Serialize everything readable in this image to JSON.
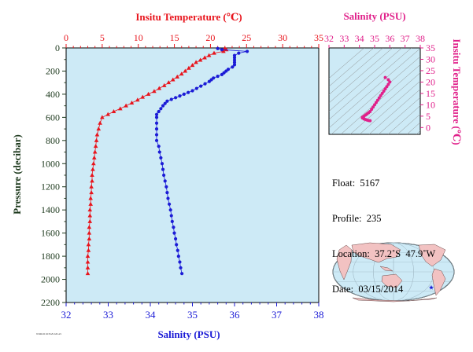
{
  "chart_data": [
    {
      "type": "scatter",
      "title": "",
      "top_axis_label": "Insitu Temperature (℃)",
      "bottom_axis_label": "Salinity (PSU)",
      "ylabel": "Pressure (decibar)",
      "temperature_xlim": [
        0,
        35
      ],
      "salinity_xlim": [
        32,
        38
      ],
      "ylim": [
        0,
        2200
      ],
      "y_inverted": true,
      "temperature_ticks": [
        "0",
        "5",
        "10",
        "15",
        "20",
        "25",
        "30",
        "35"
      ],
      "salinity_ticks": [
        "32",
        "33",
        "34",
        "35",
        "36",
        "37",
        "38"
      ],
      "pressure_ticks": [
        "0",
        "200",
        "400",
        "600",
        "800",
        "1000",
        "1200",
        "1400",
        "1600",
        "1800",
        "2000",
        "2200"
      ],
      "grid": false,
      "background": "#cdeaf6",
      "series": [
        {
          "marker": "triangle",
          "color": "#e8141c",
          "x_axis": "temperature",
          "points": [
            [
              22.0,
              5
            ],
            [
              22.2,
              15
            ],
            [
              21.8,
              30
            ],
            [
              20.5,
              45
            ],
            [
              19.8,
              65
            ],
            [
              19.2,
              85
            ],
            [
              18.6,
              105
            ],
            [
              18.0,
              125
            ],
            [
              17.5,
              150
            ],
            [
              17.0,
              175
            ],
            [
              16.5,
              200
            ],
            [
              16.0,
              225
            ],
            [
              15.4,
              250
            ],
            [
              14.8,
              275
            ],
            [
              14.2,
              300
            ],
            [
              13.6,
              325
            ],
            [
              12.9,
              350
            ],
            [
              12.2,
              375
            ],
            [
              11.4,
              400
            ],
            [
              10.6,
              425
            ],
            [
              9.9,
              450
            ],
            [
              9.1,
              475
            ],
            [
              8.3,
              500
            ],
            [
              7.5,
              525
            ],
            [
              6.6,
              550
            ],
            [
              5.8,
              575
            ],
            [
              5.0,
              600
            ],
            [
              4.7,
              650
            ],
            [
              4.5,
              700
            ],
            [
              4.3,
              750
            ],
            [
              4.2,
              800
            ],
            [
              4.1,
              850
            ],
            [
              4.0,
              900
            ],
            [
              3.9,
              950
            ],
            [
              3.8,
              1000
            ],
            [
              3.7,
              1050
            ],
            [
              3.6,
              1100
            ],
            [
              3.6,
              1150
            ],
            [
              3.5,
              1200
            ],
            [
              3.5,
              1250
            ],
            [
              3.4,
              1300
            ],
            [
              3.4,
              1350
            ],
            [
              3.3,
              1400
            ],
            [
              3.3,
              1450
            ],
            [
              3.3,
              1500
            ],
            [
              3.2,
              1550
            ],
            [
              3.2,
              1600
            ],
            [
              3.2,
              1650
            ],
            [
              3.1,
              1700
            ],
            [
              3.1,
              1750
            ],
            [
              3.0,
              1800
            ],
            [
              3.0,
              1850
            ],
            [
              3.0,
              1900
            ],
            [
              3.0,
              1950
            ]
          ]
        },
        {
          "marker": "circle",
          "color": "#1b1bd6",
          "x_axis": "salinity",
          "points": [
            [
              35.6,
              5
            ],
            [
              35.7,
              15
            ],
            [
              36.3,
              30
            ],
            [
              36.1,
              45
            ],
            [
              36.0,
              65
            ],
            [
              36.0,
              85
            ],
            [
              36.0,
              105
            ],
            [
              36.0,
              125
            ],
            [
              36.0,
              145
            ],
            [
              35.95,
              165
            ],
            [
              35.85,
              185
            ],
            [
              35.8,
              200
            ],
            [
              35.75,
              215
            ],
            [
              35.7,
              230
            ],
            [
              35.6,
              245
            ],
            [
              35.5,
              260
            ],
            [
              35.45,
              275
            ],
            [
              35.4,
              290
            ],
            [
              35.3,
              310
            ],
            [
              35.2,
              330
            ],
            [
              35.1,
              350
            ],
            [
              35.0,
              370
            ],
            [
              34.9,
              385
            ],
            [
              34.8,
              400
            ],
            [
              34.7,
              415
            ],
            [
              34.6,
              430
            ],
            [
              34.5,
              445
            ],
            [
              34.4,
              460
            ],
            [
              34.35,
              480
            ],
            [
              34.3,
              500
            ],
            [
              34.25,
              525
            ],
            [
              34.2,
              550
            ],
            [
              34.15,
              575
            ],
            [
              34.15,
              600
            ],
            [
              34.15,
              650
            ],
            [
              34.15,
              700
            ],
            [
              34.15,
              750
            ],
            [
              34.15,
              800
            ],
            [
              34.2,
              850
            ],
            [
              34.22,
              900
            ],
            [
              34.25,
              950
            ],
            [
              34.28,
              1000
            ],
            [
              34.3,
              1050
            ],
            [
              34.32,
              1100
            ],
            [
              34.35,
              1150
            ],
            [
              34.38,
              1200
            ],
            [
              34.4,
              1250
            ],
            [
              34.42,
              1300
            ],
            [
              34.45,
              1350
            ],
            [
              34.48,
              1400
            ],
            [
              34.5,
              1450
            ],
            [
              34.52,
              1500
            ],
            [
              34.55,
              1550
            ],
            [
              34.57,
              1600
            ],
            [
              34.6,
              1650
            ],
            [
              34.62,
              1700
            ],
            [
              34.65,
              1750
            ],
            [
              34.67,
              1800
            ],
            [
              34.7,
              1850
            ],
            [
              34.72,
              1900
            ],
            [
              34.75,
              1950
            ]
          ]
        }
      ]
    },
    {
      "type": "scatter",
      "title": "",
      "xlabel": "Salinity (PSU)",
      "ylabel": "Insitu Temperature (℃)",
      "xlim": [
        32,
        38
      ],
      "ylim": [
        -3,
        35
      ],
      "x_ticks": [
        "32",
        "33",
        "34",
        "35",
        "36",
        "37",
        "38"
      ],
      "y_ticks": [
        "0",
        "5",
        "10",
        "15",
        "20",
        "25",
        "30",
        "35"
      ],
      "color": "#e0208a",
      "points": [
        [
          35.7,
          22.0
        ],
        [
          35.9,
          21.0
        ],
        [
          36.0,
          20.0
        ],
        [
          35.9,
          19.0
        ],
        [
          35.8,
          18.0
        ],
        [
          35.7,
          17.0
        ],
        [
          35.6,
          16.0
        ],
        [
          35.5,
          15.0
        ],
        [
          35.4,
          14.0
        ],
        [
          35.3,
          13.0
        ],
        [
          35.2,
          12.0
        ],
        [
          35.1,
          11.0
        ],
        [
          35.0,
          10.0
        ],
        [
          34.9,
          9.0
        ],
        [
          34.8,
          8.0
        ],
        [
          34.7,
          7.0
        ],
        [
          34.6,
          6.5
        ],
        [
          34.5,
          6.0
        ],
        [
          34.4,
          5.5
        ],
        [
          34.3,
          5.0
        ],
        [
          34.2,
          4.5
        ],
        [
          34.2,
          4.2
        ],
        [
          34.3,
          3.8
        ],
        [
          34.4,
          3.5
        ],
        [
          34.5,
          3.3
        ],
        [
          34.6,
          3.1
        ],
        [
          34.7,
          3.0
        ]
      ]
    }
  ],
  "info": {
    "float": "Float:  5167",
    "profile": "Profile:  235",
    "location": "Location:  37.2˚S  47.9˚W",
    "date": "Date:  03/15/2014"
  },
  "colors": {
    "temperature": "#e8141c",
    "salinity": "#1b1bd6",
    "ts_diagram": "#e0208a",
    "axis_text": "#1e3a1e",
    "land": "#f2c2c2",
    "ocean": "#cdeaf6"
  },
  "map": {
    "marker_icon": "star-icon",
    "location_lat": -37.2,
    "location_lon": -47.9
  },
  "footer": "WORLD OCEAN ATLAS"
}
